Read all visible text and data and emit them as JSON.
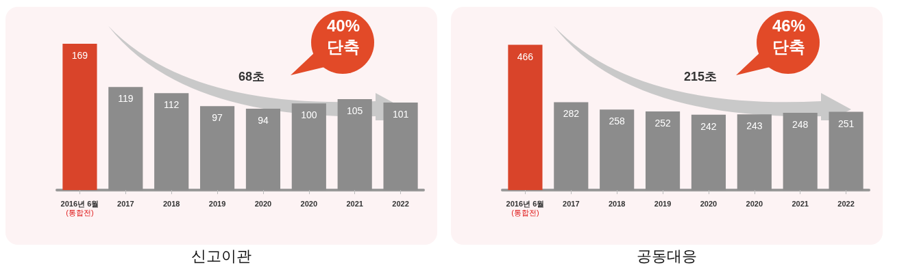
{
  "chart_data": [
    {
      "type": "bar",
      "title": "신고이관",
      "categories": [
        "2016년 6월\n(통합전)",
        "2017",
        "2018",
        "2019",
        "2020",
        "2020",
        "2021",
        "2022"
      ],
      "values": [
        169,
        119,
        112,
        97,
        94,
        100,
        105,
        101
      ],
      "colors": [
        "#d9442a",
        "#8c8c8c",
        "#8c8c8c",
        "#8c8c8c",
        "#8c8c8c",
        "#8c8c8c",
        "#8c8c8c",
        "#8c8c8c"
      ],
      "data_labels": true,
      "annotations": [
        "68초",
        "40%\n단축"
      ]
    },
    {
      "type": "bar",
      "title": "공동대응",
      "categories": [
        "2016년 6월\n(통합전)",
        "2017",
        "2018",
        "2019",
        "2020",
        "2020",
        "2021",
        "2022"
      ],
      "values": [
        466,
        282,
        258,
        252,
        242,
        243,
        248,
        251
      ],
      "colors": [
        "#d9442a",
        "#8c8c8c",
        "#8c8c8c",
        "#8c8c8c",
        "#8c8c8c",
        "#8c8c8c",
        "#8c8c8c",
        "#8c8c8c"
      ],
      "data_labels": true,
      "annotations": [
        "215초",
        "46%\n단축"
      ]
    }
  ]
}
